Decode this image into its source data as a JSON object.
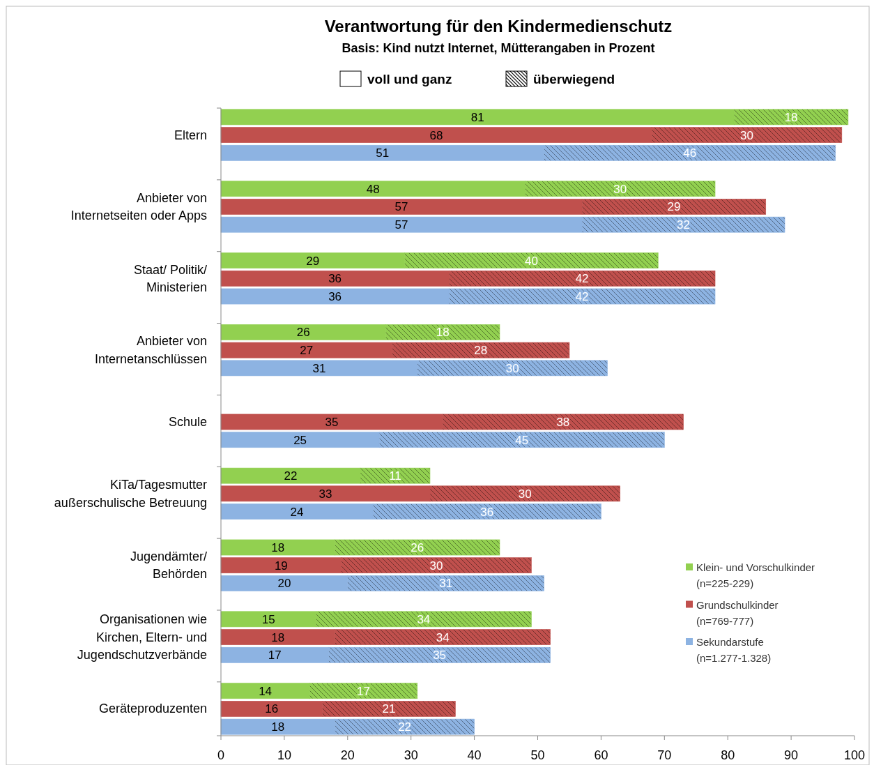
{
  "chart_data": {
    "type": "bar",
    "orientation": "horizontal",
    "stacked": true,
    "title": "Verantwortung für den Kindermedienschutz",
    "subtitle": "Basis: Kind nutzt Internet, Mütterangaben in Prozent",
    "annotations": [
      "voll und ganz",
      "überwiegend"
    ],
    "categories": [
      null,
      "Eltern",
      null,
      null,
      null,
      "Anbieter von\nInternetseiten oder Apps",
      null,
      null,
      null,
      "Staat/ Politik/\nMinisterien",
      null,
      null,
      null,
      "Anbieter von\nInternetanschlüssen",
      null,
      null,
      null,
      "Schule",
      null,
      null,
      null,
      "KiTa/Tagesmutter\naußerschulische Betreuung",
      null,
      null,
      null,
      "Jugendämter/\nBehörden",
      null,
      null,
      null,
      "Organisationen wie\nKirchen, Eltern- und\nJugendschutzverbände",
      null,
      null,
      null,
      "Geräteproduzenten",
      null
    ],
    "series": [
      {
        "name": "Klein- und Vorschulkinder\n(n=225-229)",
        "color": "#92d050",
        "values": [
          81,
          null,
          null,
          null,
          48,
          null,
          null,
          null,
          29,
          null,
          null,
          null,
          26,
          null,
          null,
          null,
          null,
          null,
          null,
          null,
          22,
          null,
          null,
          null,
          18,
          null,
          null,
          null,
          15,
          null,
          null,
          null,
          14,
          null,
          null
        ]
      },
      {
        "name": "Grundschulkinder\n(n=769-777)",
        "color": "#c0504d",
        "values": [
          null,
          68,
          null,
          null,
          null,
          57,
          null,
          null,
          null,
          36,
          null,
          null,
          null,
          27,
          null,
          null,
          null,
          35,
          null,
          null,
          null,
          33,
          null,
          null,
          null,
          19,
          null,
          null,
          null,
          18,
          null,
          null,
          null,
          16,
          null
        ]
      },
      {
        "name": "Sekundarstufe\n(n=1.277-1.328)",
        "color": "#8db3e2",
        "values": [
          null,
          null,
          51,
          null,
          null,
          null,
          57,
          null,
          null,
          null,
          36,
          null,
          null,
          null,
          31,
          null,
          null,
          null,
          25,
          null,
          null,
          null,
          24,
          null,
          null,
          null,
          20,
          null,
          null,
          null,
          17,
          null,
          null,
          null,
          18
        ]
      },
      {
        "color": "#92d050",
        "values": [
          18,
          null,
          null,
          null,
          30,
          null,
          null,
          null,
          40,
          null,
          null,
          null,
          18,
          null,
          null,
          null,
          null,
          null,
          null,
          null,
          11,
          null,
          null,
          null,
          26,
          null,
          null,
          null,
          34,
          null,
          null,
          null,
          17,
          null,
          null
        ]
      },
      {
        "color": "#c0504d",
        "values": [
          null,
          30,
          null,
          null,
          null,
          29,
          null,
          null,
          null,
          42,
          null,
          null,
          null,
          28,
          null,
          null,
          null,
          38,
          null,
          null,
          null,
          30,
          null,
          null,
          null,
          30,
          null,
          null,
          null,
          34,
          null,
          null,
          null,
          21,
          null
        ]
      },
      {
        "color": "#8db3e2",
        "values": [
          null,
          null,
          46,
          null,
          null,
          null,
          32,
          null,
          null,
          null,
          42,
          null,
          null,
          null,
          30,
          null,
          null,
          null,
          45,
          null,
          null,
          null,
          36,
          null,
          null,
          null,
          31,
          null,
          null,
          null,
          35,
          null,
          null,
          null,
          22
        ]
      }
    ],
    "xlim": [
      0,
      100
    ],
    "xticks": [
      0,
      10,
      20,
      30,
      40,
      50,
      60,
      70,
      80,
      90,
      100
    ],
    "data_labels": true,
    "legend": "bottom right"
  }
}
